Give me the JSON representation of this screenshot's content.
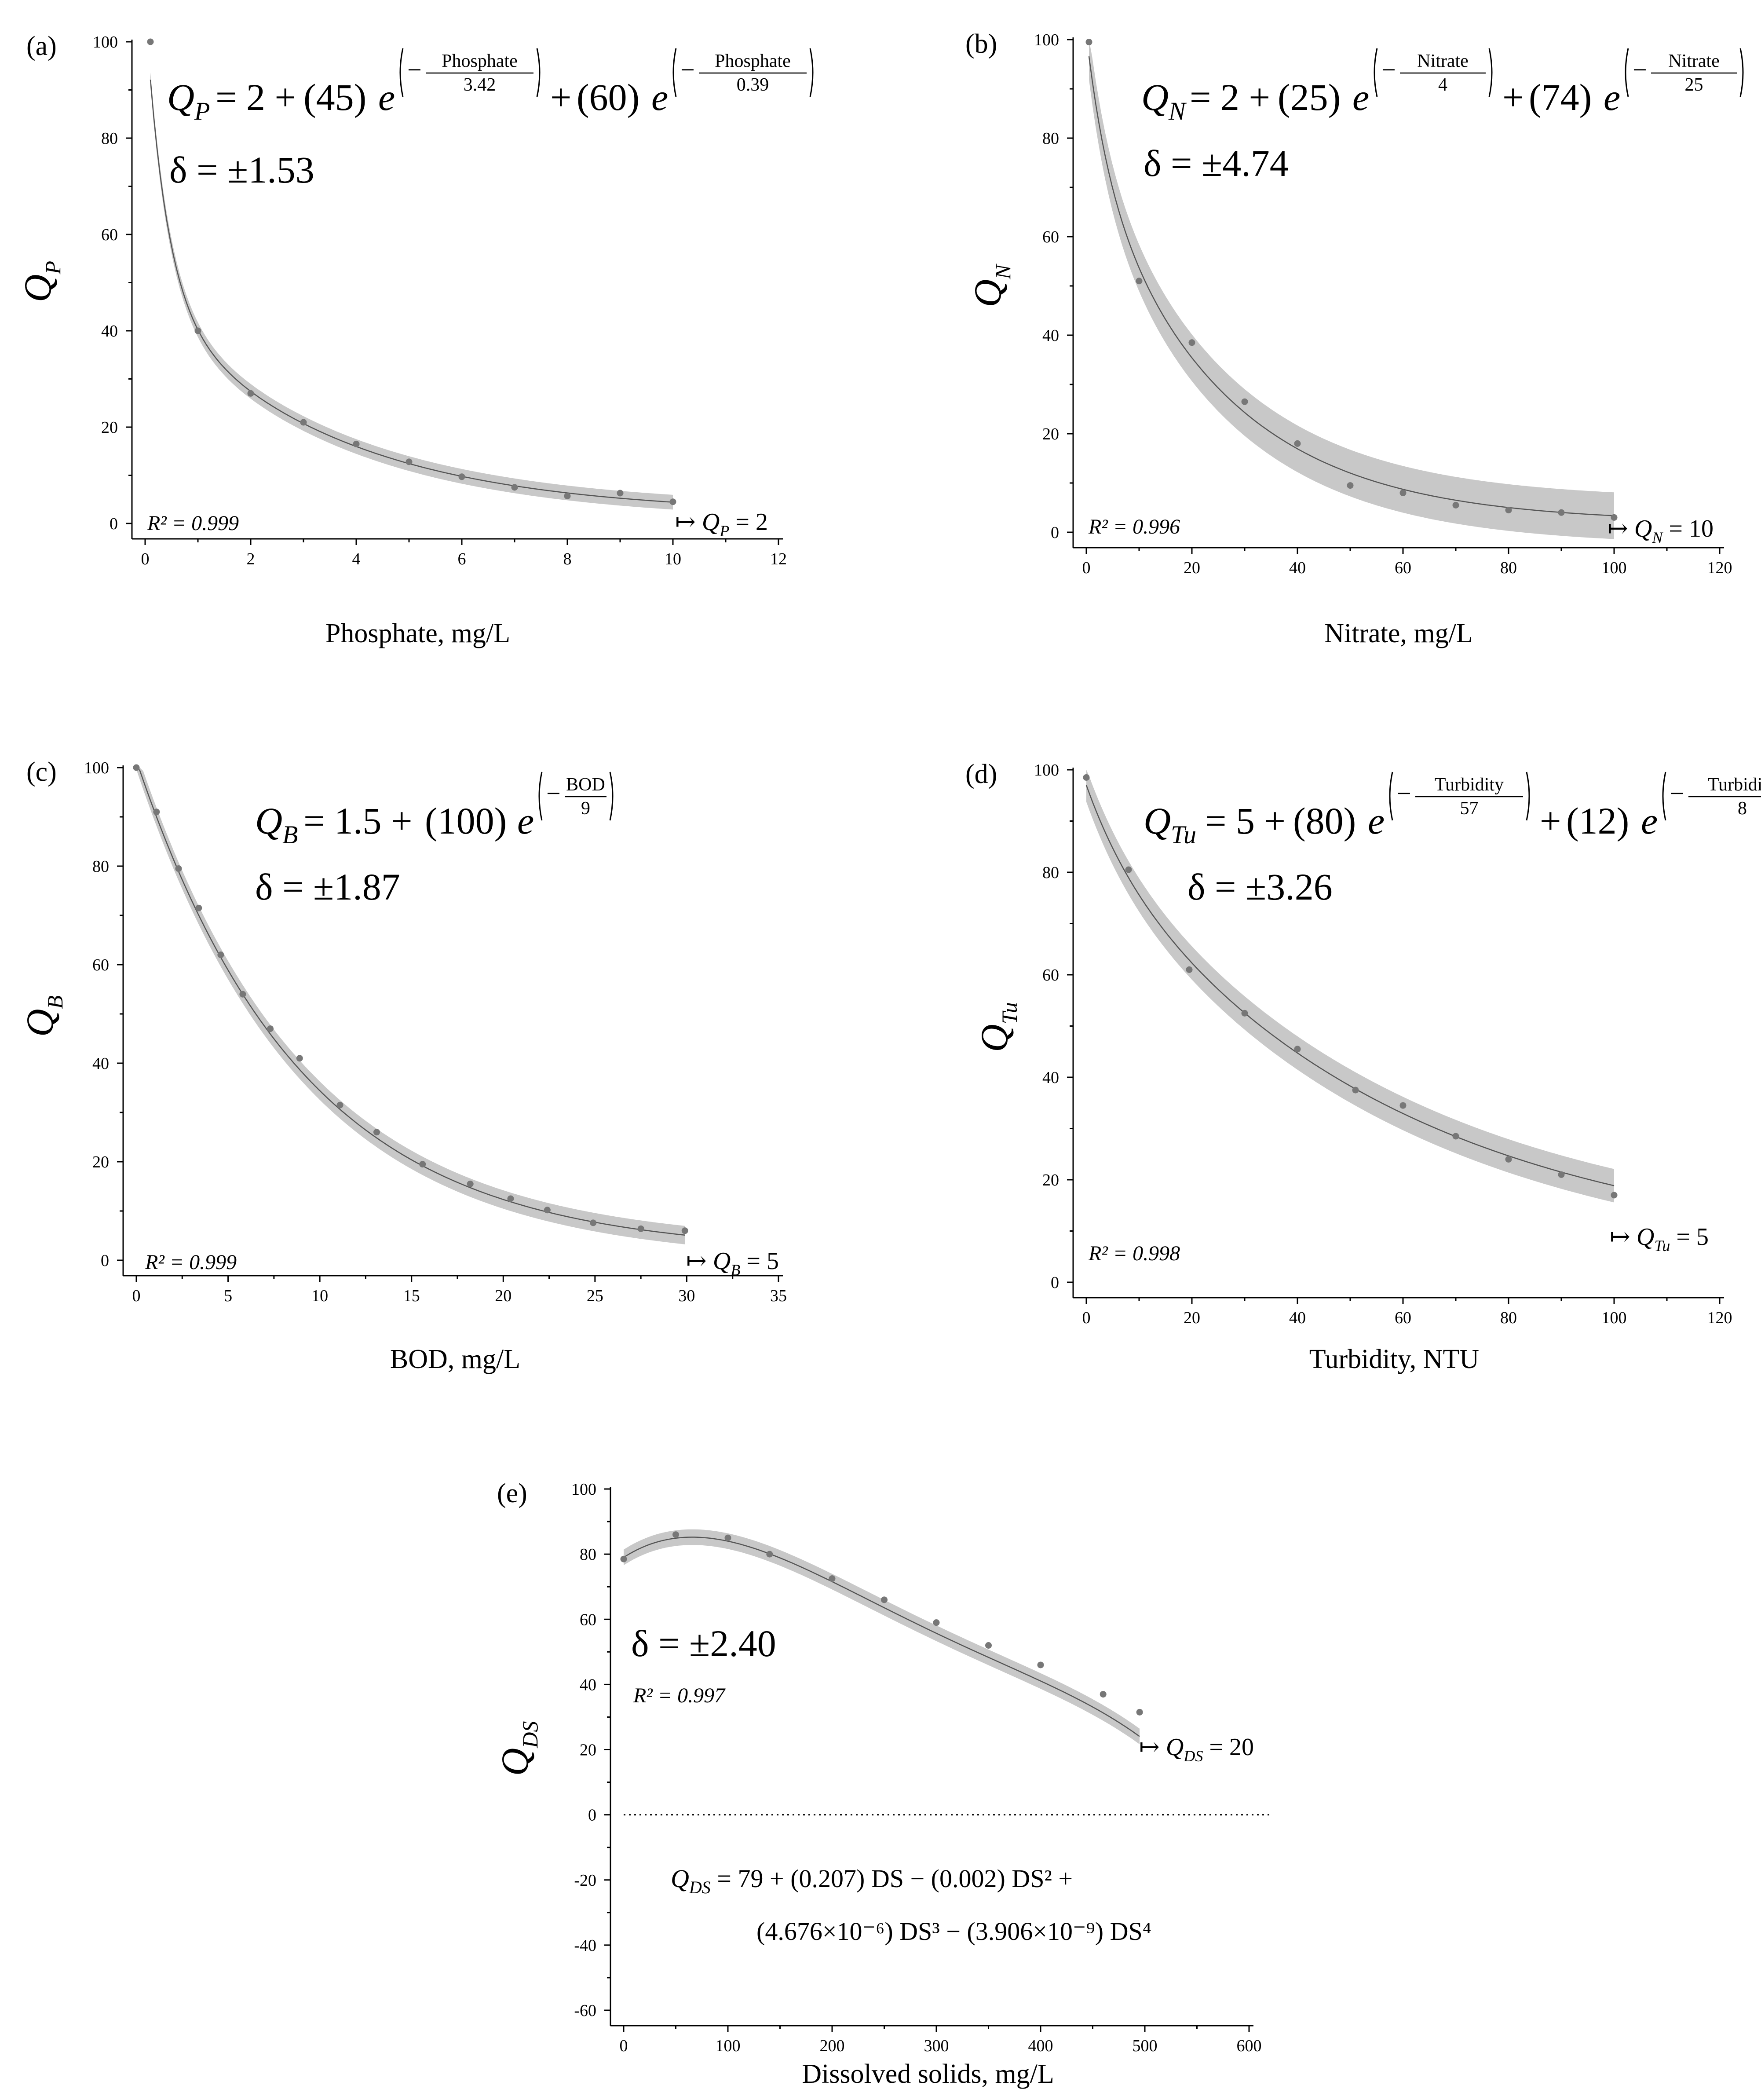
{
  "chart_data": [
    {
      "panel": "(a)",
      "type": "line",
      "xlabel": "Phosphate, mg/L",
      "ylabel_main": "Q",
      "ylabel_sub": "P",
      "xlim": [
        0,
        12
      ],
      "ylim": [
        0,
        100
      ],
      "xticks": [
        0,
        2,
        4,
        6,
        8,
        10,
        12
      ],
      "yticks": [
        0,
        20,
        40,
        60,
        80,
        100
      ],
      "equation": {
        "lhs": "Q",
        "lhs_sub": "P",
        "eq": "= 2 +",
        "terms": [
          {
            "coef": "(45)",
            "num": "Phosphate",
            "den": "3.42",
            "sep": "+"
          },
          {
            "coef": "(60)",
            "num": "Phosphate",
            "den": "0.39",
            "sep": ""
          }
        ]
      },
      "delta": "δ = ±1.53",
      "r2": "R² = 0.999",
      "limit_arrow": "↦",
      "limit_main": "Q",
      "limit_sub": "P",
      "limit_value": "= 2",
      "points": [
        [
          0.1,
          100
        ],
        [
          1,
          40
        ],
        [
          2,
          27
        ],
        [
          3,
          21
        ],
        [
          4,
          16.5
        ],
        [
          5,
          12.8
        ],
        [
          6,
          9.7
        ],
        [
          7,
          7.5
        ],
        [
          8,
          5.7
        ],
        [
          9,
          6.3
        ],
        [
          10,
          4.5
        ]
      ],
      "fit": {
        "model": "double_exp",
        "c": 2,
        "a1": 45,
        "t1": 3.42,
        "a2": 60,
        "t2": 0.39,
        "x_range": [
          0.1,
          10
        ]
      },
      "band_halfwidth": 1.53
    },
    {
      "panel": "(b)",
      "type": "line",
      "xlabel": "Nitrate, mg/L",
      "ylabel_main": "Q",
      "ylabel_sub": "N",
      "xlim": [
        0,
        120
      ],
      "ylim": [
        0,
        100
      ],
      "xticks": [
        0,
        20,
        40,
        60,
        80,
        100,
        120
      ],
      "yticks": [
        0,
        20,
        40,
        60,
        80,
        100
      ],
      "equation": {
        "lhs": "Q",
        "lhs_sub": "N",
        "eq": "= 2 +",
        "terms": [
          {
            "coef": "(25)",
            "num": "Nitrate",
            "den": "4",
            "sep": "+"
          },
          {
            "coef": "(74)",
            "num": "Nitrate",
            "den": "25",
            "sep": ""
          }
        ]
      },
      "delta": "δ = ±4.74",
      "r2": "R² = 0.996",
      "limit_arrow": "↦",
      "limit_main": "Q",
      "limit_sub": "N",
      "limit_value": "= 10",
      "points": [
        [
          0.5,
          99.5
        ],
        [
          10,
          51
        ],
        [
          20,
          38.5
        ],
        [
          30,
          26.5
        ],
        [
          40,
          18
        ],
        [
          50,
          9.5
        ],
        [
          60,
          8
        ],
        [
          70,
          5.5
        ],
        [
          80,
          4.5
        ],
        [
          90,
          4
        ],
        [
          100,
          3
        ]
      ],
      "fit": {
        "model": "double_exp",
        "c": 2,
        "a1": 25,
        "t1": 4,
        "a2": 74,
        "t2": 25,
        "x_range": [
          0.5,
          100
        ]
      },
      "band_halfwidth": 4.74
    },
    {
      "panel": "(c)",
      "type": "line",
      "xlabel": "BOD, mg/L",
      "ylabel_main": "Q",
      "ylabel_sub": "B",
      "xlim": [
        0,
        35
      ],
      "ylim": [
        0,
        100
      ],
      "xticks": [
        0,
        5,
        10,
        15,
        20,
        25,
        30,
        35
      ],
      "yticks": [
        0,
        20,
        40,
        60,
        80,
        100
      ],
      "equation": {
        "lhs": "Q",
        "lhs_sub": "B",
        "eq": "= 1.5 +",
        "terms": [
          {
            "coef": "(100)",
            "num": "BOD",
            "den": "9",
            "sep": ""
          }
        ]
      },
      "delta": "δ = ±1.87",
      "r2": "R² = 0.999",
      "limit_arrow": "↦",
      "limit_main": "Q",
      "limit_sub": "B",
      "limit_value": "= 5",
      "points": [
        [
          0,
          100
        ],
        [
          1.1,
          91
        ],
        [
          2.3,
          79.5
        ],
        [
          3.4,
          71.5
        ],
        [
          4.6,
          62
        ],
        [
          5.8,
          54
        ],
        [
          7.3,
          47
        ],
        [
          8.9,
          41
        ],
        [
          11.1,
          31.5
        ],
        [
          13.1,
          26
        ],
        [
          15.6,
          19.5
        ],
        [
          18.2,
          15.5
        ],
        [
          20.4,
          12.5
        ],
        [
          22.4,
          10.2
        ],
        [
          24.9,
          7.6
        ],
        [
          27.5,
          6.4
        ],
        [
          29.9,
          6
        ]
      ],
      "fit": {
        "model": "single_exp",
        "c": 1.5,
        "a1": 100,
        "t1": 9,
        "x_range": [
          0,
          29.9
        ]
      },
      "band_halfwidth": 1.87
    },
    {
      "panel": "(d)",
      "type": "line",
      "xlabel": "Turbidity, NTU",
      "ylabel_main": "Q",
      "ylabel_sub": "Tu",
      "xlim": [
        0,
        120
      ],
      "ylim": [
        0,
        100
      ],
      "xticks": [
        0,
        20,
        40,
        60,
        80,
        100,
        120
      ],
      "yticks": [
        0,
        20,
        40,
        60,
        80,
        100
      ],
      "equation": {
        "lhs": "Q",
        "lhs_sub": "Tu",
        "eq": "= 5 +",
        "terms": [
          {
            "coef": "(80)",
            "num": "Turbidity",
            "den": "57",
            "sep": "+"
          },
          {
            "coef": "(12)",
            "num": "Turbidity",
            "den": "8",
            "sep": ""
          }
        ]
      },
      "delta": "δ = ±3.26",
      "r2": "R² = 0.998",
      "limit_arrow": "↦",
      "limit_main": "Q",
      "limit_sub": "Tu",
      "limit_value": "= 5",
      "points": [
        [
          0,
          98.5
        ],
        [
          8,
          80.5
        ],
        [
          19.5,
          61
        ],
        [
          30,
          52.5
        ],
        [
          40,
          45.5
        ],
        [
          51,
          37.5
        ],
        [
          60,
          34.5
        ],
        [
          70,
          28.5
        ],
        [
          80,
          24
        ],
        [
          90,
          21
        ],
        [
          100,
          17
        ]
      ],
      "fit": {
        "model": "double_exp",
        "c": 5,
        "a1": 80,
        "t1": 57,
        "a2": 12,
        "t2": 8,
        "x_range": [
          0,
          100
        ]
      },
      "band_halfwidth": 3.26
    },
    {
      "panel": "(e)",
      "type": "line",
      "xlabel": "Dissolved solids, mg/L",
      "ylabel_main": "Q",
      "ylabel_sub": "DS",
      "xlim": [
        0,
        600
      ],
      "ylim": [
        -60,
        100
      ],
      "xticks": [
        0,
        100,
        200,
        300,
        400,
        500,
        600
      ],
      "yticks": [
        -60,
        -40,
        -20,
        0,
        20,
        40,
        60,
        80,
        100
      ],
      "delta": "δ = ±2.40",
      "r2": "R² = 0.997",
      "limit_arrow": "↦",
      "limit_main": "Q",
      "limit_sub": "DS",
      "limit_value": "= 20",
      "equation_line1": "= 79 + (0.207) DS − (0.002) DS² +",
      "equation_line2": "(4.676×10⁻⁶) DS³ − (3.906×10⁻⁹) DS⁴",
      "points": [
        [
          0,
          78.5
        ],
        [
          50,
          86
        ],
        [
          100,
          85
        ],
        [
          140,
          80
        ],
        [
          200,
          72.5
        ],
        [
          250,
          66
        ],
        [
          300,
          59
        ],
        [
          350,
          52
        ],
        [
          400,
          46
        ],
        [
          460,
          37
        ],
        [
          495,
          31.5
        ]
      ],
      "fit": {
        "model": "poly4",
        "coef": [
          79,
          0.207,
          -0.002,
          4.676e-06,
          -3.906e-09
        ],
        "x_range": [
          0,
          495
        ]
      },
      "band_halfwidth": 2.4
    }
  ]
}
